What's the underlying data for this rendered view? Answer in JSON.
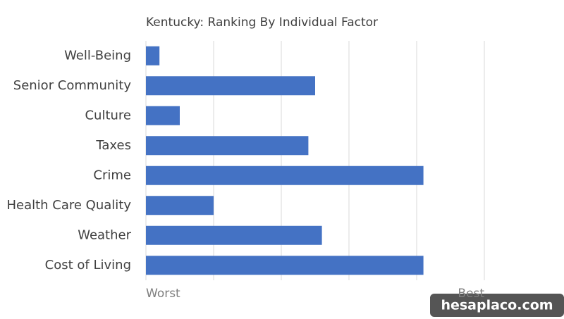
{
  "chart_data": {
    "type": "hbar",
    "title": "Kentucky: Ranking By Individual Factor",
    "categories": [
      "Well-Being",
      "Senior Community",
      "Culture",
      "Taxes",
      "Crime",
      "Health Care Quality",
      "Weather",
      "Cost of Living"
    ],
    "values": [
      2,
      25,
      5,
      24,
      41,
      10,
      26,
      41
    ],
    "color": "#4472c4",
    "xlim": [
      0,
      50
    ],
    "xticks": [
      {
        "value": 0,
        "label": "Worst"
      },
      {
        "value": 10,
        "label": null
      },
      {
        "value": 20,
        "label": null
      },
      {
        "value": 30,
        "label": null
      },
      {
        "value": 40,
        "label": null
      },
      {
        "value": 50,
        "label": "Best"
      }
    ],
    "grid": true
  },
  "watermark": "hesaplaco.com"
}
